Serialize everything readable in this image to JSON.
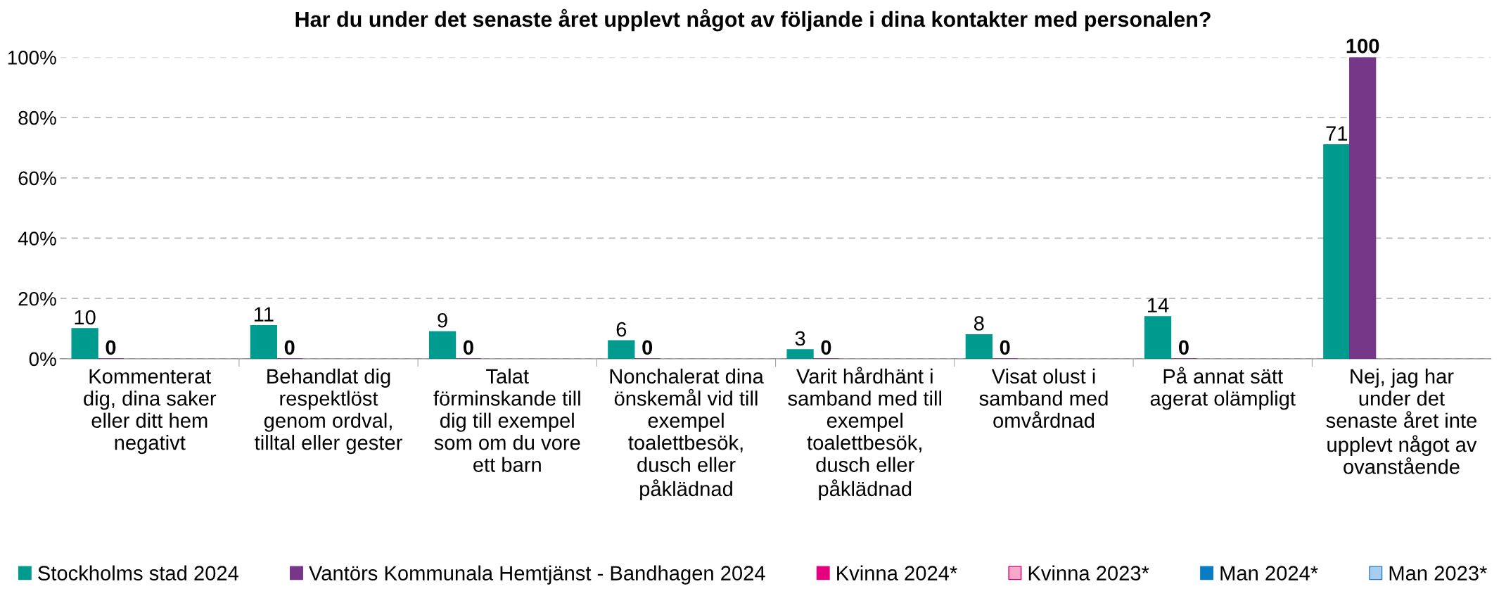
{
  "chart_data": {
    "type": "bar",
    "title": "Har du under det senaste året upplevt något av följande i dina kontakter med personalen?",
    "categories": [
      "Kommenterat\ndig, dina saker\neller ditt hem\nnegativt",
      "Behandlat dig\nrespektlöst\ngenom ordval,\ntilltal eller gester",
      "Talat\nförminskande till\ndig till exempel\nsom om du vore\nett barn",
      "Nonchalerat dina\nönskemål vid till\nexempel\ntoalettbesök,\ndusch eller\npåklädnad",
      "Varit hårdhänt i\nsamband med till\nexempel\ntoalettbesök,\ndusch eller\npåklädnad",
      "Visat olust i\nsamband med\nomvårdnad",
      "På annat sätt\nagerat olämpligt",
      "Nej, jag har\nunder det\nsenaste året inte\nupplevt något av\novanstående"
    ],
    "series": [
      {
        "name": "Stockholms stad 2024",
        "color": "#009b8f",
        "values": [
          10,
          11,
          9,
          6,
          3,
          8,
          14,
          71
        ]
      },
      {
        "name": "Vantörs Kommunala Hemtjänst - Bandhagen 2024",
        "color": "#773788",
        "values": [
          0,
          0,
          0,
          0,
          0,
          0,
          0,
          100
        ]
      },
      {
        "name": "Kvinna 2024*",
        "color": "#e5007d",
        "values": [
          null,
          null,
          null,
          null,
          null,
          null,
          null,
          null
        ]
      },
      {
        "name": "Kvinna 2023*",
        "color": "#f7a8c8",
        "values": [
          null,
          null,
          null,
          null,
          null,
          null,
          null,
          null
        ]
      },
      {
        "name": "Man 2024*",
        "color": "#0a7cc4",
        "values": [
          null,
          null,
          null,
          null,
          null,
          null,
          null,
          null
        ]
      },
      {
        "name": "Man 2023*",
        "color": "#a9cdee",
        "values": [
          null,
          null,
          null,
          null,
          null,
          null,
          null,
          null
        ]
      }
    ],
    "ylim": [
      0,
      100
    ],
    "yticks": [
      {
        "value": 0,
        "label": "0%"
      },
      {
        "value": 20,
        "label": "20%"
      },
      {
        "value": 40,
        "label": "40%"
      },
      {
        "value": 60,
        "label": "60%"
      },
      {
        "value": 80,
        "label": "80%"
      },
      {
        "value": 100,
        "label": "100%"
      }
    ],
    "grid": "y",
    "legend": "bottom",
    "data_labels": true
  }
}
